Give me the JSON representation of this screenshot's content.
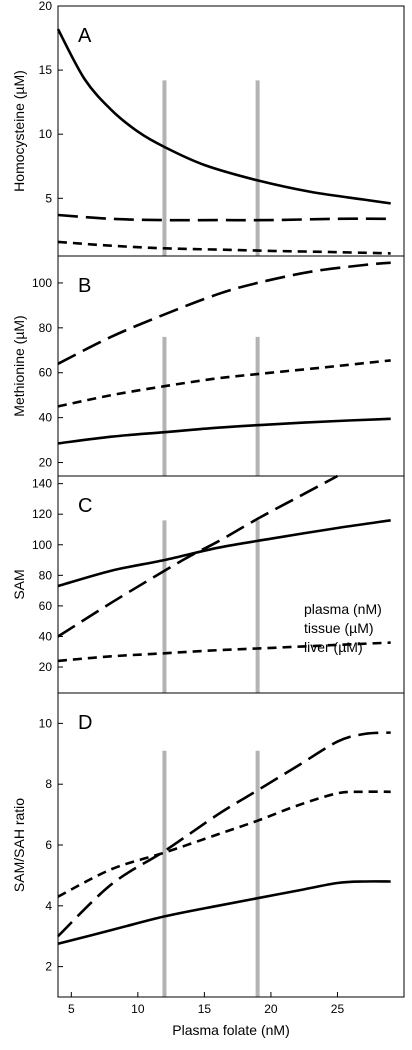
{
  "chart_data": [
    {
      "panel": "A",
      "type": "line",
      "ylabel": "Homocysteine (µM)",
      "ylim": [
        0.5,
        20
      ],
      "yticks": [
        5,
        10,
        15,
        20
      ],
      "xlim": [
        4,
        30
      ],
      "markers": [
        12,
        19
      ],
      "marker_top": 14.2,
      "series": [
        {
          "style": "solid",
          "x": [
            4,
            6,
            8,
            10,
            12,
            15,
            19,
            23,
            27,
            29
          ],
          "y": [
            18.2,
            14.3,
            11.9,
            10.2,
            9.0,
            7.6,
            6.4,
            5.5,
            4.9,
            4.6
          ]
        },
        {
          "style": "long-dash",
          "x": [
            4,
            8,
            12,
            16,
            20,
            25,
            29
          ],
          "y": [
            3.7,
            3.4,
            3.3,
            3.3,
            3.3,
            3.4,
            3.4
          ]
        },
        {
          "style": "short-dash",
          "x": [
            4,
            8,
            12,
            16,
            20,
            25,
            29
          ],
          "y": [
            1.6,
            1.3,
            1.1,
            1.0,
            0.9,
            0.8,
            0.7
          ]
        }
      ]
    },
    {
      "panel": "B",
      "type": "line",
      "ylabel": "Methionine (µM)",
      "ylim": [
        14,
        112
      ],
      "yticks": [
        20,
        40,
        60,
        80,
        100
      ],
      "xlim": [
        4,
        30
      ],
      "markers": [
        12,
        19
      ],
      "marker_top": 76,
      "series": [
        {
          "style": "long-dash",
          "x": [
            4,
            8,
            12,
            16,
            19,
            23,
            27,
            29
          ],
          "y": [
            64,
            76,
            86,
            95,
            100,
            105,
            108,
            109
          ]
        },
        {
          "style": "short-dash",
          "x": [
            4,
            8,
            12,
            16,
            20,
            25,
            29
          ],
          "y": [
            45,
            50,
            54,
            57.5,
            60,
            63,
            65.5
          ]
        },
        {
          "style": "solid",
          "x": [
            4,
            8,
            12,
            16,
            20,
            25,
            29
          ],
          "y": [
            28.5,
            31.5,
            33.5,
            35.5,
            37,
            38.5,
            39.5
          ]
        }
      ]
    },
    {
      "panel": "C",
      "type": "line",
      "ylabel": "SAM",
      "ylim": [
        3,
        145
      ],
      "yticks": [
        20,
        40,
        60,
        80,
        100,
        120,
        140
      ],
      "xlim": [
        4,
        30
      ],
      "markers": [
        12,
        19
      ],
      "marker_top": 116,
      "legend": [
        "plasma (nM)",
        "tissue (µM)",
        "liver (µM)"
      ],
      "series": [
        {
          "style": "solid",
          "x": [
            4,
            8,
            12,
            16,
            20,
            25,
            29
          ],
          "y": [
            73,
            83,
            90,
            98,
            104,
            111,
            116
          ]
        },
        {
          "style": "long-dash",
          "x": [
            4,
            8,
            12,
            14,
            16,
            19,
            22,
            25
          ],
          "y": [
            40,
            62,
            83,
            93,
            102,
            117,
            131,
            145
          ]
        },
        {
          "style": "short-dash",
          "x": [
            4,
            8,
            12,
            16,
            20,
            25,
            29
          ],
          "y": [
            24,
            27,
            29,
            31,
            32.5,
            34.5,
            36
          ]
        }
      ]
    },
    {
      "panel": "D",
      "type": "line",
      "ylabel": "SAM/SAH ratio",
      "xlabel": "Plasma folate (nM)",
      "ylim": [
        1,
        11
      ],
      "yticks": [
        2,
        4,
        6,
        8,
        10
      ],
      "xlim": [
        4,
        30
      ],
      "xticks": [
        5,
        10,
        15,
        20,
        25
      ],
      "markers": [
        12,
        19
      ],
      "marker_top": 9.1,
      "series": [
        {
          "style": "long-dash",
          "x": [
            4,
            8,
            12,
            16,
            19,
            22,
            25,
            27,
            29
          ],
          "y": [
            3.0,
            4.7,
            5.8,
            7.0,
            7.8,
            8.6,
            9.4,
            9.65,
            9.7
          ]
        },
        {
          "style": "short-dash",
          "x": [
            4,
            8,
            12,
            16,
            19,
            22,
            25,
            27,
            29
          ],
          "y": [
            4.3,
            5.2,
            5.75,
            6.35,
            6.8,
            7.3,
            7.7,
            7.75,
            7.75
          ]
        },
        {
          "style": "solid",
          "x": [
            4,
            8,
            12,
            16,
            19,
            22,
            25,
            27,
            29
          ],
          "y": [
            2.75,
            3.2,
            3.65,
            4.0,
            4.25,
            4.5,
            4.75,
            4.8,
            4.8
          ]
        }
      ]
    }
  ],
  "colors": {
    "line": "#000000",
    "marker": "#b3b3b3",
    "frame": "#000000"
  }
}
